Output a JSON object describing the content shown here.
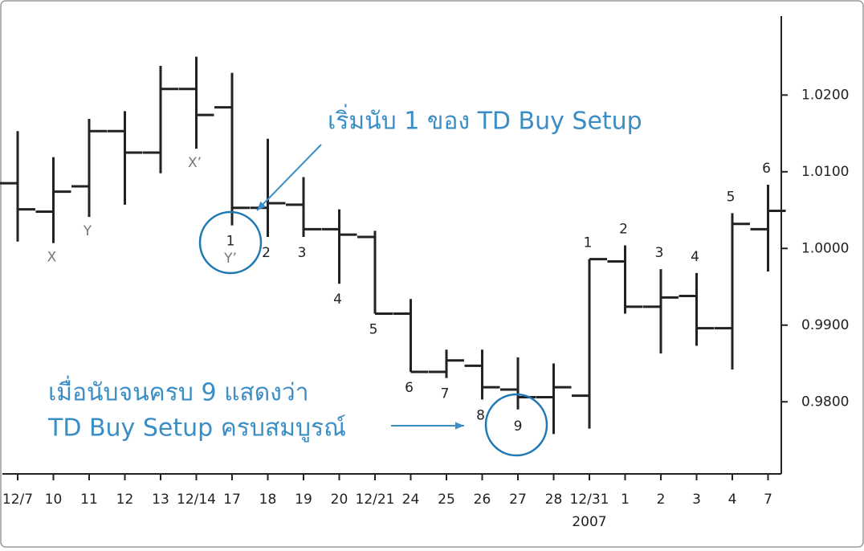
{
  "chart_data": {
    "type": "ohlc",
    "categories": [
      "12/7",
      "10",
      "11",
      "12",
      "13",
      "12/14",
      "17",
      "18",
      "19",
      "20",
      "12/21",
      "24",
      "25",
      "26",
      "27",
      "28",
      "12/31",
      "1",
      "2",
      "3",
      "4",
      "7"
    ],
    "year_label": "2007",
    "open": [
      1.0085,
      1.0048,
      1.0081,
      1.0153,
      1.0125,
      1.0208,
      1.0184,
      1.0053,
      1.0057,
      1.0025,
      1.0015,
      0.9915,
      0.9839,
      0.9847,
      0.9816,
      0.9806,
      0.9808,
      0.9983,
      0.9924,
      0.9938,
      0.9896,
      1.0025
    ],
    "high": [
      1.0153,
      1.0119,
      1.0169,
      1.0179,
      1.0238,
      1.025,
      1.0229,
      1.0143,
      1.0093,
      1.0051,
      1.0023,
      0.9934,
      0.9868,
      0.9868,
      0.9858,
      0.985,
      0.9986,
      1.0004,
      0.9973,
      0.9968,
      1.0046,
      1.0083
    ],
    "low": [
      1.0009,
      1.0007,
      1.0041,
      1.0057,
      1.0098,
      1.013,
      1.003,
      1.0015,
      1.0015,
      0.9954,
      0.9915,
      0.9839,
      0.9831,
      0.9803,
      0.979,
      0.9758,
      0.9765,
      0.9915,
      0.9863,
      0.9873,
      0.9842,
      0.997
    ],
    "close": [
      1.0051,
      1.0074,
      1.0153,
      1.0125,
      1.0208,
      1.0174,
      1.0053,
      1.0059,
      1.0025,
      1.0018,
      0.9915,
      0.9839,
      0.9854,
      0.9819,
      0.9806,
      0.9819,
      0.9986,
      0.9924,
      0.9936,
      0.9896,
      1.0032,
      1.0049
    ],
    "color": "#222222",
    "count_labels": [
      null,
      null,
      null,
      null,
      null,
      null,
      "1",
      "2",
      "3",
      "4",
      "5",
      "6",
      "7",
      "8",
      "9",
      null,
      "1",
      "2",
      "3",
      "4",
      "5",
      "6"
    ],
    "letter_labels": [
      null,
      "X",
      "Y",
      null,
      null,
      "X’",
      "Y’",
      null,
      null,
      null,
      null,
      null,
      null,
      null,
      null,
      null,
      null,
      null,
      null,
      null,
      null,
      null
    ],
    "ylim": [
      0.9706,
      1.0303
    ],
    "yticks": [
      {
        "value": 0.98,
        "label": "0.9800"
      },
      {
        "value": 0.99,
        "label": "0.9900"
      },
      {
        "value": 1.0,
        "label": "1.0000"
      },
      {
        "value": 1.01,
        "label": "1.0100"
      },
      {
        "value": 1.02,
        "label": "1.0200"
      }
    ],
    "annotation_color": "#3a8dc5",
    "annotations": [
      "เริ่มนับ 1 ของ TD Buy Setup",
      "เมื่อนับจนครบ 9 แสดงว่า",
      "TD Buy Setup ครบสมบูรณ์"
    ]
  }
}
